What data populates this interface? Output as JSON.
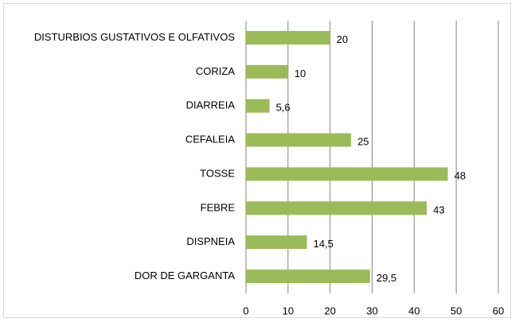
{
  "chart_data": {
    "type": "bar",
    "orientation": "horizontal",
    "categories": [
      "DISTURBIOS GUSTATIVOS E OLFATIVOS",
      "CORIZA",
      "DIARREIA",
      "CEFALEIA",
      "TOSSE",
      "FEBRE",
      "DISPNEIA",
      "DOR DE GARGANTA"
    ],
    "values": [
      20,
      10,
      5.6,
      25,
      48,
      43,
      14.5,
      29.5
    ],
    "value_labels": [
      "20",
      "10",
      "5,6",
      "25",
      "48",
      "43",
      "14,5",
      "29,5"
    ],
    "color": "#9bbb59",
    "xlim": [
      0,
      60
    ],
    "xticks": [
      0,
      10,
      20,
      30,
      40,
      50,
      60
    ],
    "grid": true
  }
}
